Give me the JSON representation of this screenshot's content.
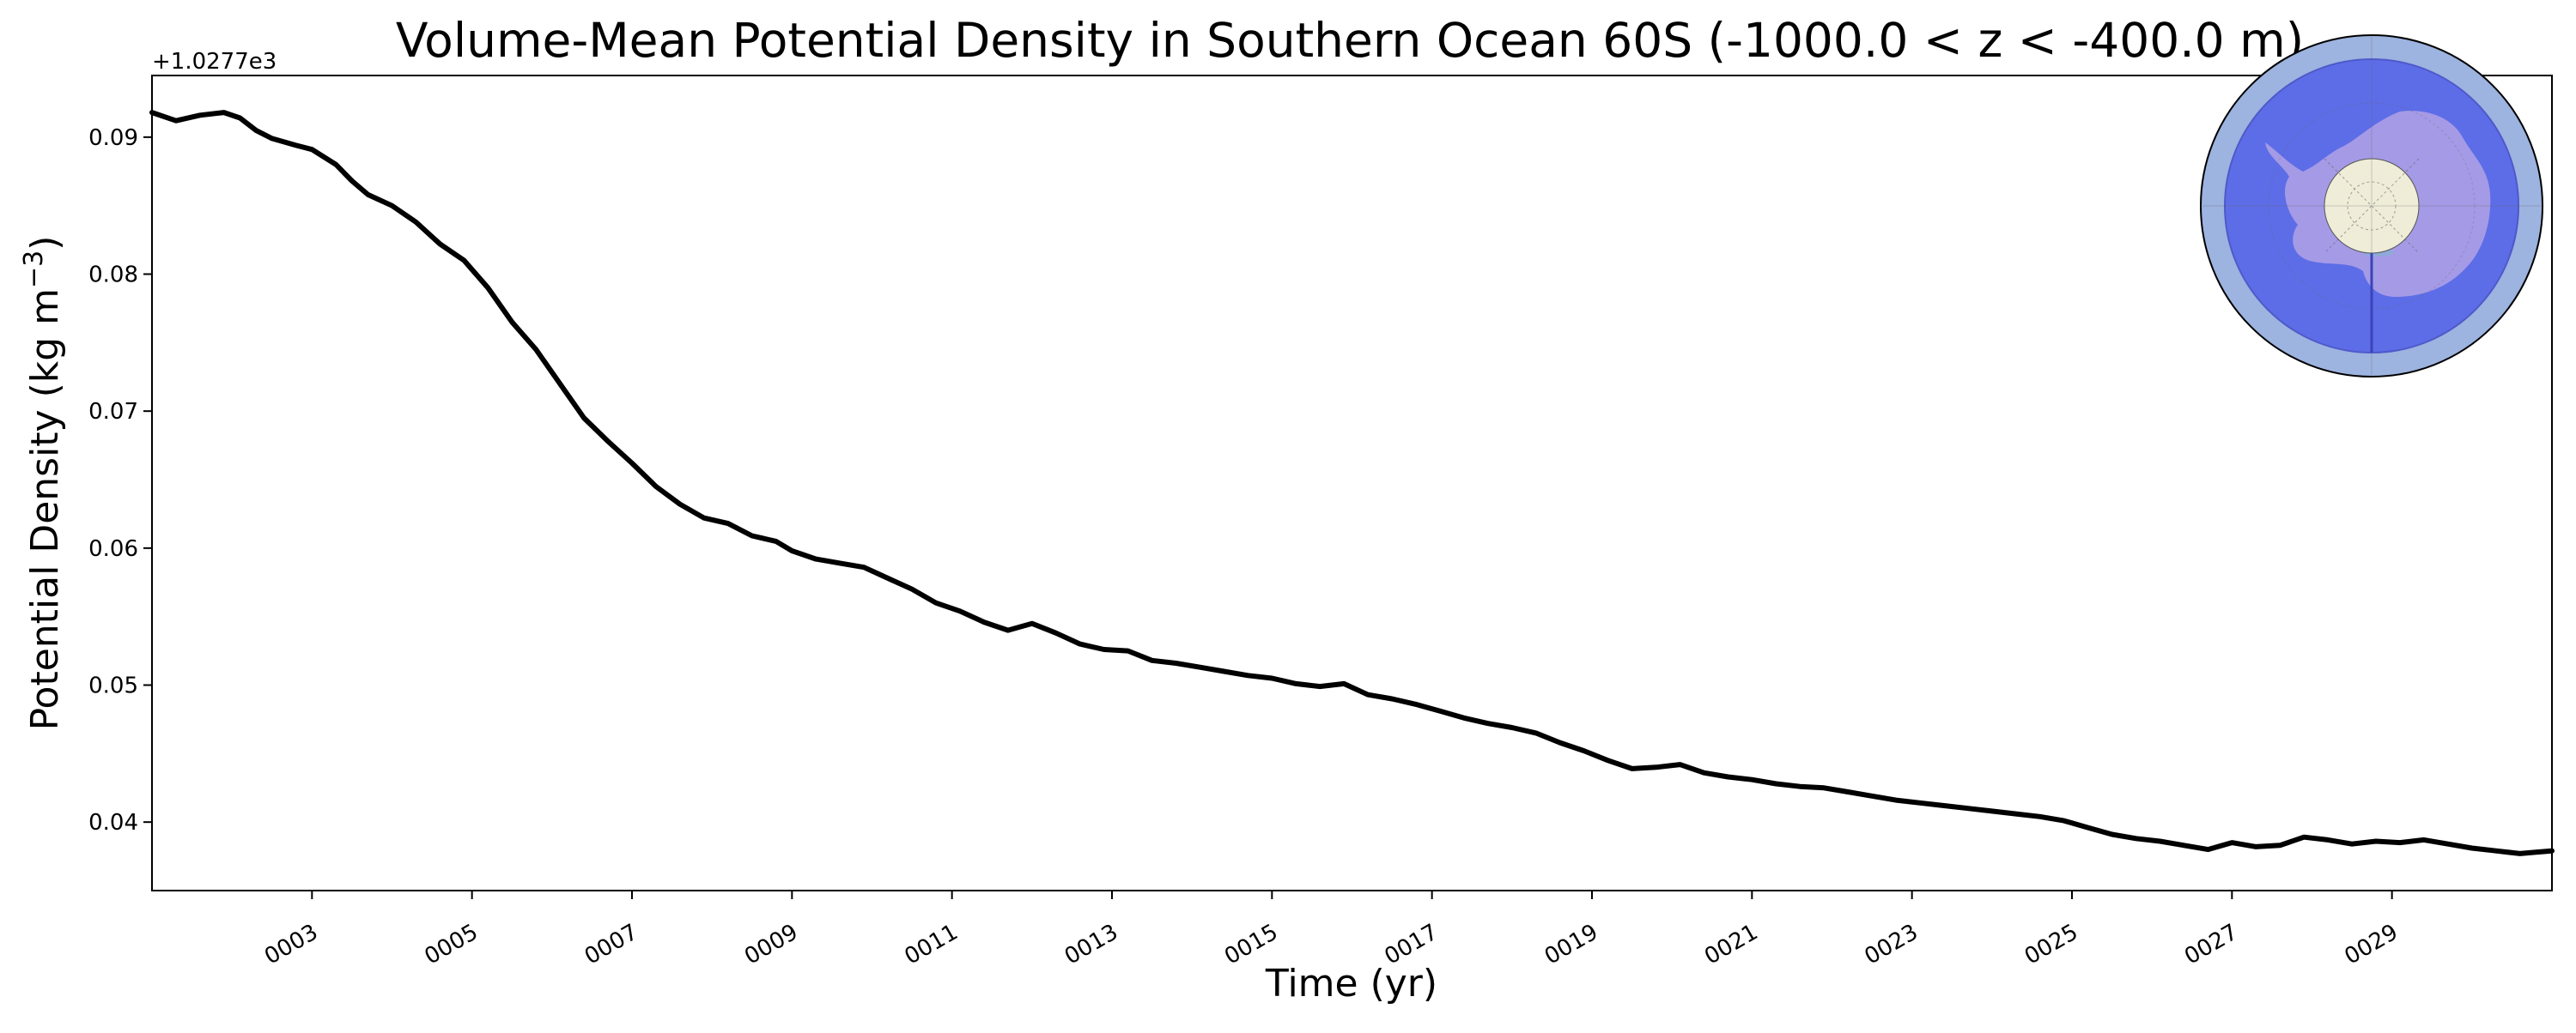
{
  "chart_data": {
    "type": "line",
    "title": "Volume-Mean Potential Density in Southern Ocean 60S (-1000.0 < z < -400.0 m)",
    "xlabel": "Time (yr)",
    "ylabel_main": "Potential Density (kg m",
    "ylabel_sup": "−3",
    "ylabel_close": ")",
    "offset_label": "+1.0277e3",
    "xlim": [
      1.0,
      31.0
    ],
    "ylim": [
      0.035,
      0.0945
    ],
    "xticks": [
      3,
      5,
      7,
      9,
      11,
      13,
      15,
      17,
      19,
      21,
      23,
      25,
      27,
      29
    ],
    "xtick_labels": [
      "0003",
      "0005",
      "0007",
      "0009",
      "0011",
      "0013",
      "0015",
      "0017",
      "0019",
      "0021",
      "0023",
      "0025",
      "0027",
      "0029"
    ],
    "yticks": [
      0.04,
      0.05,
      0.06,
      0.07,
      0.08,
      0.09
    ],
    "ytick_labels": [
      "0.04",
      "0.05",
      "0.06",
      "0.07",
      "0.08",
      "0.09"
    ],
    "grid": false,
    "line_color": "#000000",
    "series": [
      {
        "x": [
          1.0,
          1.3,
          1.6,
          1.9,
          2.1,
          2.3,
          2.5,
          2.8,
          3.0,
          3.3,
          3.5,
          3.7,
          4.0,
          4.3,
          4.6,
          4.9,
          5.2,
          5.5,
          5.8,
          6.1,
          6.4,
          6.7,
          7.0,
          7.3,
          7.6,
          7.9,
          8.2,
          8.5,
          8.8,
          9.0,
          9.3,
          9.6,
          9.9,
          10.2,
          10.5,
          10.8,
          11.1,
          11.4,
          11.7,
          12.0,
          12.3,
          12.6,
          12.9,
          13.2,
          13.5,
          13.8,
          14.1,
          14.4,
          14.7,
          15.0,
          15.3,
          15.6,
          15.9,
          16.2,
          16.5,
          16.8,
          17.1,
          17.4,
          17.7,
          18.0,
          18.3,
          18.6,
          18.9,
          19.2,
          19.5,
          19.8,
          20.1,
          20.4,
          20.7,
          21.0,
          21.3,
          21.6,
          21.9,
          22.2,
          22.5,
          22.8,
          23.1,
          23.4,
          23.7,
          24.0,
          24.3,
          24.6,
          24.9,
          25.2,
          25.5,
          25.8,
          26.1,
          26.4,
          26.7,
          27.0,
          27.3,
          27.6,
          27.9,
          28.2,
          28.5,
          28.8,
          29.1,
          29.4,
          29.7,
          30.0,
          30.3,
          30.6,
          30.8,
          31.0
        ],
        "y": [
          0.0918,
          0.0912,
          0.0916,
          0.0918,
          0.0914,
          0.0905,
          0.0899,
          0.0894,
          0.0891,
          0.088,
          0.0868,
          0.0858,
          0.085,
          0.0838,
          0.0822,
          0.081,
          0.079,
          0.0765,
          0.0745,
          0.072,
          0.0695,
          0.0678,
          0.0662,
          0.0645,
          0.0632,
          0.0622,
          0.0618,
          0.0609,
          0.0605,
          0.0598,
          0.0592,
          0.0589,
          0.0586,
          0.0578,
          0.057,
          0.056,
          0.0554,
          0.0546,
          0.054,
          0.0545,
          0.0538,
          0.053,
          0.0526,
          0.0525,
          0.0518,
          0.0516,
          0.0513,
          0.051,
          0.0507,
          0.0505,
          0.0501,
          0.0499,
          0.0501,
          0.0493,
          0.049,
          0.0486,
          0.0481,
          0.0476,
          0.0472,
          0.0469,
          0.0465,
          0.0458,
          0.0452,
          0.0445,
          0.0439,
          0.044,
          0.0442,
          0.0436,
          0.0433,
          0.0431,
          0.0428,
          0.0426,
          0.0425,
          0.0422,
          0.0419,
          0.0416,
          0.0414,
          0.0412,
          0.041,
          0.0408,
          0.0406,
          0.0404,
          0.0401,
          0.0396,
          0.0391,
          0.0388,
          0.0386,
          0.0383,
          0.038,
          0.0385,
          0.0382,
          0.0383,
          0.0389,
          0.0387,
          0.0384,
          0.0386,
          0.0385,
          0.0387,
          0.0384,
          0.0381,
          0.0379,
          0.0377,
          0.0378,
          0.0379
        ]
      }
    ],
    "inset_map": {
      "description": "Antarctic polar map inset",
      "ocean_outer_color": "#9db3e0",
      "region_color": "#5a6ae8",
      "land_color": "#a59ae6",
      "pole_color": "#efedd8"
    }
  }
}
